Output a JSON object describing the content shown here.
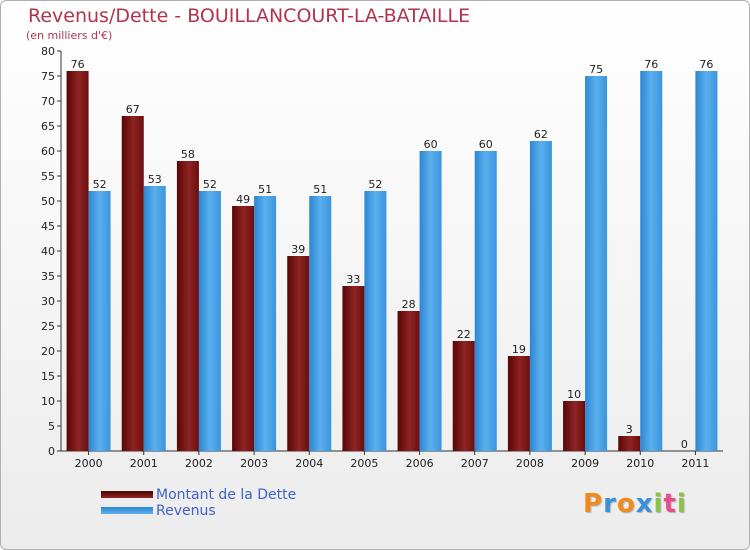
{
  "title": "Revenus/Dette - BOUILLANCOURT-LA-BATAILLE",
  "subtitle": "(en milliers d'€)",
  "legend": [
    {
      "label": "Montant de la Dette",
      "color": "#7a1010"
    },
    {
      "label": "Revenus",
      "color": "#4aa3e6"
    }
  ],
  "logo": {
    "text": "Proxiti",
    "letters": [
      "P",
      "r",
      "o",
      "x",
      "i",
      "t",
      "i"
    ],
    "colors": [
      "#f08a1c",
      "#3b8fd8",
      "#f08a1c",
      "#3b8fd8",
      "#8bc34a",
      "#e84c8c",
      "#8bc34a"
    ]
  },
  "chart_data": {
    "type": "bar",
    "categories": [
      "2000",
      "2001",
      "2002",
      "2003",
      "2004",
      "2005",
      "2006",
      "2007",
      "2008",
      "2009",
      "2010",
      "2011"
    ],
    "series": [
      {
        "name": "Montant de la Dette",
        "values": [
          76,
          67,
          58,
          49,
          39,
          33,
          28,
          22,
          19,
          10,
          3,
          0
        ],
        "color": "#7a1010"
      },
      {
        "name": "Revenus",
        "values": [
          52,
          53,
          52,
          51,
          51,
          52,
          60,
          60,
          62,
          75,
          76,
          76
        ],
        "color": "#4aa3e6"
      }
    ],
    "ylim": [
      0,
      80
    ],
    "yticks": [
      0,
      5,
      10,
      15,
      20,
      25,
      30,
      35,
      40,
      45,
      50,
      55,
      60,
      65,
      70,
      75,
      80
    ],
    "grid": false
  }
}
